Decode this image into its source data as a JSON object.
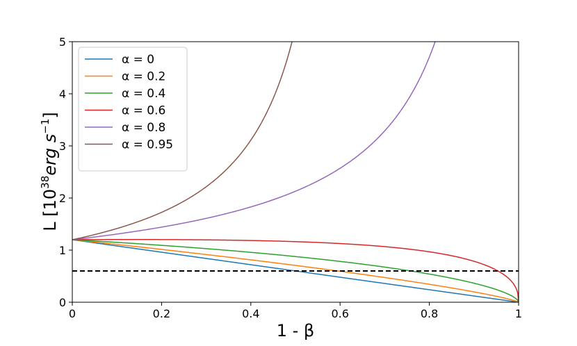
{
  "chart_data": {
    "type": "line",
    "xlabel": "1 - β",
    "ylabel_main": "L [10",
    "ylabel_exp1": "38",
    "ylabel_mid": "erg s",
    "ylabel_exp2": "−1",
    "ylabel_end": "]",
    "xlim": [
      0,
      1
    ],
    "ylim": [
      0,
      5
    ],
    "x_ticks": [
      0,
      0.2,
      0.4,
      0.6,
      0.8,
      1
    ],
    "x_tick_labels": [
      "0",
      "0.2",
      "0.4",
      "0.6",
      "0.8",
      "1"
    ],
    "y_ticks": [
      0,
      1,
      2,
      3,
      4,
      5
    ],
    "y_tick_labels": [
      "0",
      "1",
      "2",
      "3",
      "4",
      "5"
    ],
    "L0": 1.2,
    "reference_line": {
      "y": 0.6,
      "style": "dashed",
      "color": "#000000"
    },
    "legend_position": "top-left",
    "series": [
      {
        "name": "α = 0",
        "alpha": 0,
        "color": "#1f77b4"
      },
      {
        "name": "α = 0.2",
        "alpha": 0.2,
        "color": "#ff7f0e"
      },
      {
        "name": "α = 0.4",
        "alpha": 0.4,
        "color": "#2ca02c"
      },
      {
        "name": "α = 0.6",
        "alpha": 0.6,
        "color": "#d62728"
      },
      {
        "name": "α = 0.8",
        "alpha": 0.8,
        "color": "#9467bd"
      },
      {
        "name": "α = 0.95",
        "alpha": 0.95,
        "color": "#8c564b"
      }
    ]
  }
}
